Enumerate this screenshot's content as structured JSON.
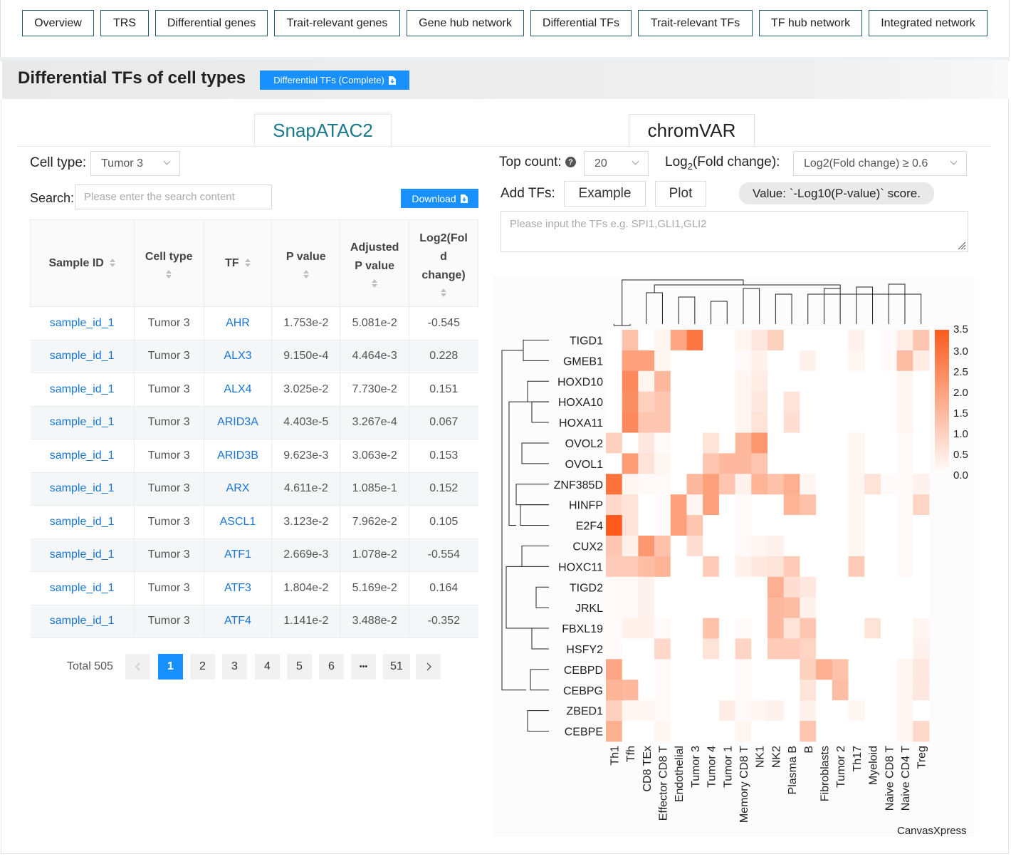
{
  "nav": [
    "Overview",
    "TRS",
    "Differential genes",
    "Trait-relevant genes",
    "Gene hub network",
    "Differential TFs",
    "Trait-relevant TFs",
    "TF hub network",
    "Integrated network"
  ],
  "section": {
    "title": "Differential TFs of cell types",
    "complete_button": "Differential TFs (Complete)"
  },
  "tabs": {
    "active": "SnapATAC2",
    "inactive": "chromVAR"
  },
  "left": {
    "cell_type_label": "Cell type:",
    "cell_type_value": "Tumor 3",
    "search_label": "Search:",
    "search_placeholder": "Please enter the search content",
    "download_label": "Download"
  },
  "table": {
    "headers": {
      "sample_id": "Sample ID",
      "cell_type": "Cell type",
      "tf": "TF",
      "p_value": "P value",
      "adj_line1": "Adjusted",
      "adj_line2": "P value",
      "log_line1": "Log2(Fol",
      "log_line2": "d",
      "log_line3": "change)"
    },
    "rows": [
      {
        "sample": "sample_id_1",
        "cell": "Tumor 3",
        "tf": "AHR",
        "p": "1.753e-2",
        "adj": "5.081e-2",
        "log2": "-0.545"
      },
      {
        "sample": "sample_id_1",
        "cell": "Tumor 3",
        "tf": "ALX3",
        "p": "9.150e-4",
        "adj": "4.464e-3",
        "log2": "0.228"
      },
      {
        "sample": "sample_id_1",
        "cell": "Tumor 3",
        "tf": "ALX4",
        "p": "3.025e-2",
        "adj": "7.730e-2",
        "log2": "0.151"
      },
      {
        "sample": "sample_id_1",
        "cell": "Tumor 3",
        "tf": "ARID3A",
        "p": "4.403e-5",
        "adj": "3.267e-4",
        "log2": "0.067"
      },
      {
        "sample": "sample_id_1",
        "cell": "Tumor 3",
        "tf": "ARID3B",
        "p": "9.623e-3",
        "adj": "3.063e-2",
        "log2": "0.153"
      },
      {
        "sample": "sample_id_1",
        "cell": "Tumor 3",
        "tf": "ARX",
        "p": "4.611e-2",
        "adj": "1.085e-1",
        "log2": "0.152"
      },
      {
        "sample": "sample_id_1",
        "cell": "Tumor 3",
        "tf": "ASCL1",
        "p": "3.123e-2",
        "adj": "7.962e-2",
        "log2": "0.105"
      },
      {
        "sample": "sample_id_1",
        "cell": "Tumor 3",
        "tf": "ATF1",
        "p": "2.669e-3",
        "adj": "1.078e-2",
        "log2": "-0.554"
      },
      {
        "sample": "sample_id_1",
        "cell": "Tumor 3",
        "tf": "ATF3",
        "p": "1.804e-2",
        "adj": "5.169e-2",
        "log2": "0.164"
      },
      {
        "sample": "sample_id_1",
        "cell": "Tumor 3",
        "tf": "ATF4",
        "p": "1.141e-2",
        "adj": "3.488e-2",
        "log2": "-0.352"
      }
    ]
  },
  "pagination": {
    "total": "Total 505",
    "pages": [
      "1",
      "2",
      "3",
      "4",
      "5",
      "6",
      "•••",
      "51"
    ],
    "current": "1"
  },
  "right": {
    "top_count_label": "Top count:",
    "top_count_help": "?",
    "top_count_value": "20",
    "fc_label_prefix": "Log",
    "fc_label_sub": "2",
    "fc_label_suffix": "(Fold change):",
    "fc_value": "Log2(Fold change) ≥ 0.6",
    "add_tfs_label": "Add TFs:",
    "example_button": "Example",
    "plot_button": "Plot",
    "value_pill": "Value: `-Log10(P-value)` score.",
    "tf_input_placeholder": "Please input the TFs  e.g. SPI1,GLI1,GLI2",
    "watermark": "CanvasXpress"
  },
  "colors": {
    "accent": "#1890ff",
    "link": "#1776d6",
    "tab_active": "#1a7a8c",
    "heat_max": "#fb5a1c",
    "heat_min": "#ffffff"
  },
  "chart_data": {
    "type": "heatmap",
    "rows": [
      "TIGD1",
      "GMEB1",
      "HOXD10",
      "HOXA10",
      "HOXA11",
      "OVOL2",
      "OVOL1",
      "ZNF385D",
      "HINFP",
      "E2F4",
      "CUX2",
      "HOXC11",
      "TIGD2",
      "JRKL",
      "FBXL19",
      "HSFY2",
      "CEBPD",
      "CEBPG",
      "ZBED1",
      "CEBPE"
    ],
    "columns": [
      "Th1",
      "Tfh",
      "CD8 TEx",
      "Effector CD8 T",
      "Endothelial",
      "Tumor 3",
      "Tumor 4",
      "Tumor 1",
      "Memory CD8 T",
      "NK1",
      "NK2",
      "Plasma B",
      "B",
      "Fibroblasts",
      "Tumor 2",
      "Th17",
      "Myeloid",
      "Naive CD8 T",
      "Naive CD4 T",
      "Treg"
    ],
    "values": [
      [
        0,
        1.3,
        0,
        0.2,
        1.9,
        2.9,
        0,
        0,
        0.2,
        0.5,
        1.0,
        0,
        0,
        0,
        0,
        0.3,
        0,
        0.1,
        0.4,
        1.2
      ],
      [
        0,
        2.0,
        2.0,
        0.2,
        0,
        0,
        0,
        0,
        0.1,
        0.3,
        0,
        0,
        0.3,
        0,
        0,
        0.2,
        0,
        0.1,
        1.4,
        0.4
      ],
      [
        0,
        2.5,
        0.2,
        1.5,
        0,
        0,
        0,
        0,
        0.2,
        0.4,
        0,
        0,
        0,
        0,
        0,
        0,
        0,
        0,
        0.2,
        0
      ],
      [
        0,
        2.4,
        1.0,
        1.2,
        0,
        0,
        0,
        0,
        0.2,
        0.5,
        0,
        0.6,
        0,
        0,
        0,
        0,
        0,
        0,
        0.2,
        0
      ],
      [
        0,
        2.5,
        1.2,
        1.2,
        0,
        0,
        0,
        0,
        0.2,
        0.6,
        0,
        0.7,
        0,
        0,
        0,
        0,
        0,
        0,
        0.2,
        0
      ],
      [
        1.0,
        0,
        0.5,
        0.1,
        0,
        0,
        0.6,
        0,
        1.5,
        2.2,
        0,
        0,
        0,
        0,
        0,
        0.2,
        0,
        0,
        0.1,
        0
      ],
      [
        0,
        2.1,
        0.6,
        0.2,
        0,
        0,
        1.2,
        1.5,
        1.5,
        1.2,
        0,
        0,
        0,
        0,
        0,
        0.2,
        0,
        0,
        0.1,
        0
      ],
      [
        3.0,
        0.2,
        0.1,
        0.1,
        0,
        1.5,
        2.0,
        1.2,
        0.3,
        1.6,
        1.3,
        1.7,
        0.2,
        0,
        0,
        0.2,
        0.6,
        0.1,
        0.1,
        0.3
      ],
      [
        0.8,
        0.6,
        0,
        0.1,
        2.0,
        0.2,
        2.0,
        0,
        0.1,
        0,
        0,
        1.6,
        1.3,
        0,
        0,
        0.2,
        0,
        0,
        0.1,
        0.9
      ],
      [
        3.5,
        0.6,
        0,
        0.1,
        2.0,
        1.2,
        0,
        0,
        0.1,
        0,
        0,
        0,
        0,
        0,
        0,
        0.2,
        0,
        0,
        0.1,
        0
      ],
      [
        1.2,
        0.3,
        2.2,
        1.3,
        0,
        0.7,
        0,
        0,
        0.1,
        0.2,
        0.3,
        0,
        0,
        0,
        0,
        0.2,
        0,
        0,
        0.1,
        0
      ],
      [
        1.1,
        1.1,
        1.4,
        1.6,
        0,
        0,
        1.1,
        0,
        0.3,
        0.5,
        0.6,
        1.1,
        0,
        0,
        0,
        1.1,
        0,
        0,
        0.1,
        0
      ],
      [
        0.1,
        0.1,
        0.3,
        0,
        0,
        0,
        0,
        0,
        0,
        0,
        1.7,
        0.7,
        0.5,
        0,
        0,
        0,
        0,
        0,
        0,
        0
      ],
      [
        0.1,
        0.1,
        0.3,
        0,
        0,
        0,
        0,
        0,
        0,
        0,
        1.5,
        1.4,
        0.3,
        0,
        0,
        0,
        0,
        0,
        0,
        0
      ],
      [
        0.1,
        0.3,
        0.3,
        0.1,
        0,
        0,
        1.3,
        0,
        0.1,
        0,
        1.5,
        0.6,
        1.2,
        0,
        0,
        0,
        0.6,
        0,
        0,
        0.2
      ],
      [
        0.1,
        0,
        0,
        0.8,
        0,
        0,
        0.6,
        0,
        0.9,
        0,
        1.1,
        1.1,
        0.9,
        0,
        0,
        0,
        0,
        0,
        0,
        0.3
      ],
      [
        1.9,
        0,
        0,
        0.1,
        0,
        0,
        0,
        0,
        0.1,
        0,
        0,
        0,
        1.0,
        1.7,
        1.3,
        0,
        0,
        0,
        0.2,
        0.5
      ],
      [
        1.6,
        1.5,
        0,
        0.1,
        0,
        0,
        0,
        0,
        0.1,
        0,
        0,
        0,
        0.6,
        0,
        1.4,
        0,
        0,
        0,
        0.2,
        0.5
      ],
      [
        1.0,
        0.2,
        0.2,
        0.1,
        0,
        0,
        0,
        0.4,
        0.1,
        0.2,
        0.3,
        0,
        0.3,
        0,
        0,
        0.2,
        0,
        0,
        0.2,
        0
      ],
      [
        1.7,
        0,
        0,
        0.2,
        0,
        0,
        0,
        0,
        0.2,
        0,
        0,
        0,
        1.2,
        0,
        0,
        0,
        0,
        0,
        0.2,
        0.8
      ]
    ],
    "scale": {
      "min": 0,
      "max": 3.5,
      "ticks": [
        "3.5",
        "3.0",
        "2.5",
        "2.0",
        "1.5",
        "1.0",
        "0.5",
        "0.0"
      ]
    }
  }
}
